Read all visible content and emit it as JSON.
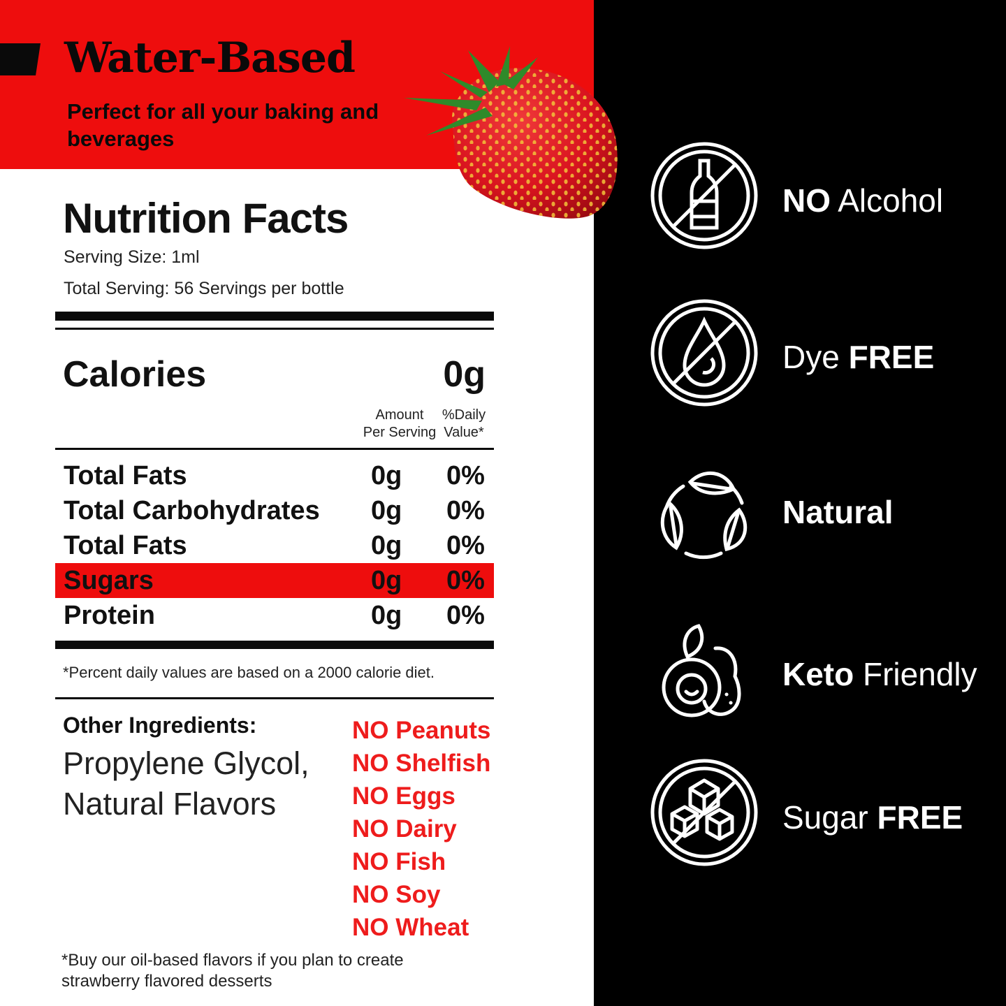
{
  "header": {
    "title": "Water-Based",
    "subtitle": "Perfect for all your baking and beverages"
  },
  "nutrition": {
    "title": "Nutrition Facts",
    "serving_size": "Serving Size: 1ml",
    "total_serving": "Total Serving: 56 Servings per bottle",
    "calories_label": "Calories",
    "calories_value": "0g",
    "col_amount_1": "Amount",
    "col_amount_2": "Per Serving",
    "col_dv_1": "%Daily",
    "col_dv_2": "Value*",
    "rows": [
      {
        "name": "Total Fats",
        "amount": "0g",
        "dv": "0%"
      },
      {
        "name": "Total Carbohydrates",
        "amount": "0g",
        "dv": "0%"
      },
      {
        "name": "Total Fats",
        "amount": "0g",
        "dv": "0%"
      },
      {
        "name": "Sugars",
        "amount": "0g",
        "dv": "0%"
      },
      {
        "name": "Protein",
        "amount": "0g",
        "dv": "0%"
      }
    ],
    "footnote": "*Percent daily values are based on a 2000 calorie diet."
  },
  "ingredients": {
    "label": "Other Ingredients:",
    "value": "Propylene Glycol, Natural Flavors"
  },
  "allergens": [
    "NO Peanuts",
    "NO Shelfish",
    "NO Eggs",
    "NO Dairy",
    "NO Fish",
    "NO Soy",
    "NO Wheat"
  ],
  "bottom_note": "*Buy our oil-based flavors if you plan to create strawberry flavored desserts",
  "features": [
    {
      "bold": "NO",
      "rest": " Alcohol",
      "icon": "no-alcohol-icon"
    },
    {
      "pre": "Dye ",
      "bold": "FREE",
      "icon": "dye-free-icon"
    },
    {
      "bold": "Natural",
      "icon": "natural-leaves-icon"
    },
    {
      "bold": "Keto",
      "rest": " Friendly",
      "icon": "keto-avocado-icon"
    },
    {
      "pre": "Sugar ",
      "bold": "FREE",
      "icon": "sugar-free-icon"
    }
  ],
  "colors": {
    "accent_red": "#ee0d0d",
    "dark": "#000000",
    "white": "#ffffff"
  }
}
